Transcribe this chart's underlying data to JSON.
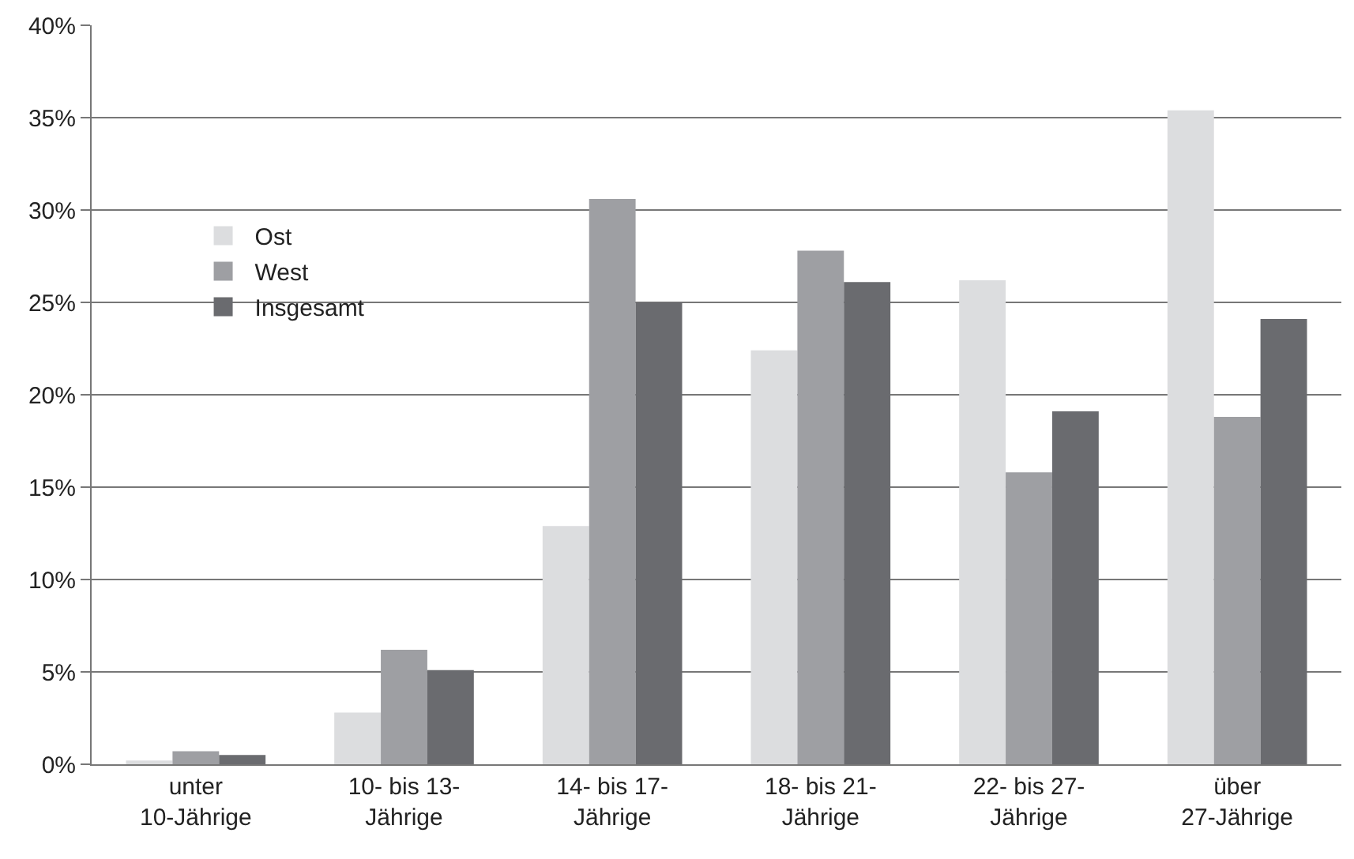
{
  "chart_data": {
    "type": "bar",
    "categories": [
      "unter\n10-Jährige",
      "10- bis 13-\nJährige",
      "14- bis 17-\nJährige",
      "18- bis 21-\nJährige",
      "22- bis 27-\nJährige",
      "über\n27-Jährige"
    ],
    "series": [
      {
        "name": "Ost",
        "color": "#dcdddf",
        "values": [
          0.2,
          2.8,
          12.9,
          22.4,
          26.2,
          35.4
        ]
      },
      {
        "name": "West",
        "color": "#9e9fa3",
        "values": [
          0.7,
          6.2,
          30.6,
          27.8,
          15.8,
          18.8
        ]
      },
      {
        "name": "Insgesamt",
        "color": "#6a6b6f",
        "values": [
          0.5,
          5.1,
          25.0,
          26.1,
          19.1,
          24.1
        ]
      }
    ],
    "ylim": [
      0,
      40
    ],
    "yticks": [
      {
        "value": 0,
        "label": "0%"
      },
      {
        "value": 5,
        "label": "5%"
      },
      {
        "value": 10,
        "label": "10%"
      },
      {
        "value": 15,
        "label": "15%"
      },
      {
        "value": 20,
        "label": "20%"
      },
      {
        "value": 25,
        "label": "25%"
      },
      {
        "value": 30,
        "label": "30%"
      },
      {
        "value": 35,
        "label": "35%"
      },
      {
        "value": 40,
        "label": "40%"
      }
    ],
    "grid": "y",
    "legend": "top left"
  }
}
